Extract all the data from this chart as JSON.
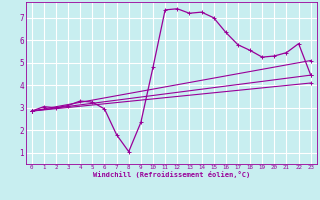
{
  "background_color": "#c8eef0",
  "grid_color": "#ffffff",
  "line_color": "#990099",
  "marker_color": "#990099",
  "xlabel": "Windchill (Refroidissement éolien,°C)",
  "xlim": [
    -0.5,
    23.5
  ],
  "ylim": [
    0.5,
    7.7
  ],
  "xticks": [
    0,
    1,
    2,
    3,
    4,
    5,
    6,
    7,
    8,
    9,
    10,
    11,
    12,
    13,
    14,
    15,
    16,
    17,
    18,
    19,
    20,
    21,
    22,
    23
  ],
  "yticks": [
    1,
    2,
    3,
    4,
    5,
    6,
    7
  ],
  "series": [
    [
      [
        0,
        2.85
      ],
      [
        1,
        3.05
      ],
      [
        2,
        3.0
      ],
      [
        3,
        3.1
      ],
      [
        4,
        3.3
      ],
      [
        5,
        3.25
      ],
      [
        6,
        2.95
      ],
      [
        7,
        1.8
      ],
      [
        8,
        1.05
      ],
      [
        9,
        2.35
      ],
      [
        10,
        4.8
      ],
      [
        11,
        7.35
      ],
      [
        12,
        7.4
      ],
      [
        13,
        7.2
      ],
      [
        14,
        7.25
      ],
      [
        15,
        7.0
      ],
      [
        16,
        6.35
      ],
      [
        17,
        5.8
      ],
      [
        18,
        5.55
      ],
      [
        19,
        5.25
      ],
      [
        20,
        5.3
      ],
      [
        21,
        5.45
      ],
      [
        22,
        5.85
      ],
      [
        23,
        4.45
      ]
    ],
    [
      [
        0,
        2.85
      ],
      [
        23,
        5.1
      ]
    ],
    [
      [
        0,
        2.85
      ],
      [
        23,
        4.45
      ]
    ],
    [
      [
        0,
        2.85
      ],
      [
        23,
        4.1
      ]
    ]
  ]
}
